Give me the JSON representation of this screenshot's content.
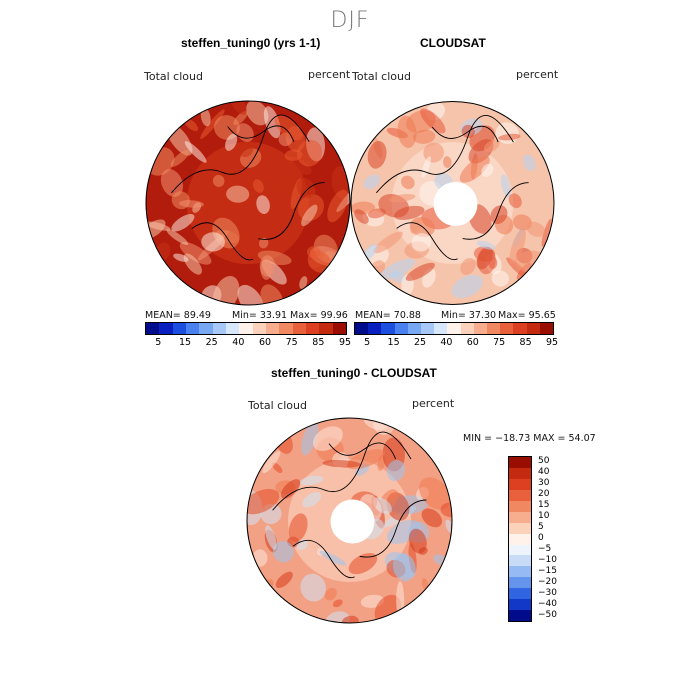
{
  "figure": {
    "season": "DJF"
  },
  "panels": [
    {
      "title": "steffen_tuning0 (yrs 1-1)",
      "field_label": "Total cloud",
      "units": "percent",
      "stats": {
        "mean": "MEAN=  89.49",
        "min": "Min=  33.91",
        "max": "Max=  99.96"
      },
      "fill": "#b21c0c",
      "mid": "#d43a1a",
      "patches": [
        "#e85a30",
        "#ef8a5e",
        "#f7c2a6",
        "#fde8dc",
        "#c62f14",
        "#f09070"
      ]
    },
    {
      "title": "CLOUDSAT",
      "field_label": "Total cloud",
      "units": "percent",
      "stats": {
        "mean": "MEAN=  70.88",
        "min": "Min=  37.30",
        "max": "Max=  95.65"
      },
      "fill": "#f6c4aa",
      "mid": "#fde6d8",
      "patches": [
        "#e8593a",
        "#d9472a",
        "#f29572",
        "#fff6f0",
        "#b6d4f2",
        "#ee7b54"
      ]
    },
    {
      "title": "steffen_tuning0 - CLOUDSAT",
      "field_label": "Total cloud",
      "units": "percent",
      "stats": {
        "minmax": "MIN = −18.73 MAX =  54.07"
      },
      "fill": "#f3a184",
      "mid": "#fbd9c8",
      "patches": [
        "#e44e28",
        "#d63c1c",
        "#fde6da",
        "#cfe3f6",
        "#9cc4ee",
        "#f07a50"
      ]
    }
  ],
  "colorbar_abs": {
    "colors": [
      "#000c8c",
      "#0a1fc0",
      "#1c4fe0",
      "#4a80f0",
      "#78a8f4",
      "#a8c8f8",
      "#d8e8fc",
      "#fff2ea",
      "#fcd2bb",
      "#f7ae8e",
      "#f08861",
      "#e8603c",
      "#dc4020",
      "#c42a10",
      "#9a0e02"
    ],
    "ticks": [
      "5",
      "15",
      "25",
      "40",
      "60",
      "75",
      "85",
      "95"
    ]
  },
  "colorbar_diff": {
    "colors": [
      "#9a0e02",
      "#c42a10",
      "#dc4020",
      "#e8603c",
      "#f08861",
      "#f7ae8e",
      "#fcd2bb",
      "#fff2ea",
      "#eef4fc",
      "#c8dcf8",
      "#96baf2",
      "#6494ec",
      "#3064e0",
      "#1238c8",
      "#000c8c"
    ],
    "ticks": [
      "50",
      "40",
      "30",
      "20",
      "15",
      "10",
      "5",
      "0",
      "−5",
      "−10",
      "−15",
      "−20",
      "−30",
      "−40",
      "−50"
    ]
  }
}
